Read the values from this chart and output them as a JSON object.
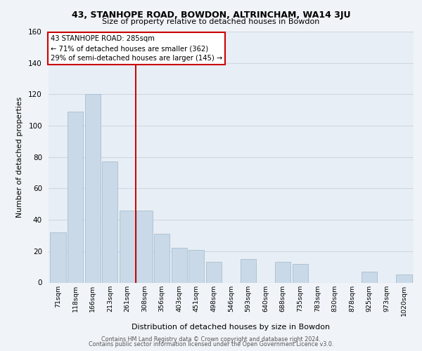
{
  "title": "43, STANHOPE ROAD, BOWDON, ALTRINCHAM, WA14 3JU",
  "subtitle": "Size of property relative to detached houses in Bowdon",
  "xlabel": "Distribution of detached houses by size in Bowdon",
  "ylabel": "Number of detached properties",
  "categories": [
    "71sqm",
    "118sqm",
    "166sqm",
    "213sqm",
    "261sqm",
    "308sqm",
    "356sqm",
    "403sqm",
    "451sqm",
    "498sqm",
    "546sqm",
    "593sqm",
    "640sqm",
    "688sqm",
    "735sqm",
    "783sqm",
    "830sqm",
    "878sqm",
    "925sqm",
    "973sqm",
    "1020sqm"
  ],
  "values": [
    32,
    109,
    120,
    77,
    46,
    46,
    31,
    22,
    21,
    13,
    0,
    15,
    0,
    13,
    12,
    0,
    0,
    0,
    7,
    0,
    5
  ],
  "bar_color": "#c9d9e8",
  "bar_edge_color": "#a8bfd0",
  "vline_x": 4.5,
  "vline_color": "#cc0000",
  "annotation_box_text": "43 STANHOPE ROAD: 285sqm\n← 71% of detached houses are smaller (362)\n29% of semi-detached houses are larger (145) →",
  "annotation_box_color": "#cc0000",
  "annotation_box_fill": "#ffffff",
  "ylim": [
    0,
    160
  ],
  "yticks": [
    0,
    20,
    40,
    60,
    80,
    100,
    120,
    140,
    160
  ],
  "footer_line1": "Contains HM Land Registry data © Crown copyright and database right 2024.",
  "footer_line2": "Contains public sector information licensed under the Open Government Licence v3.0.",
  "grid_color": "#cdd8e3",
  "background_color": "#e8eef5",
  "fig_bg_color": "#f0f4f8"
}
